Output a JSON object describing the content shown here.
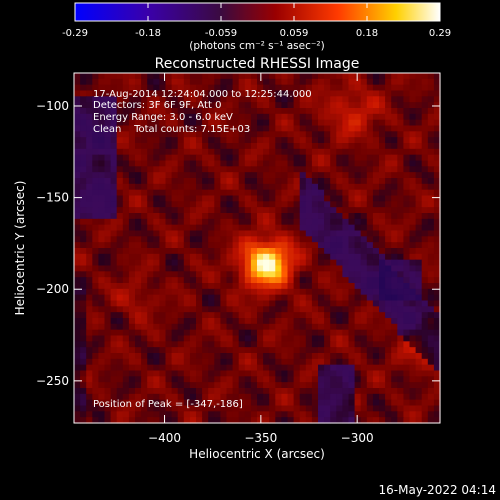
{
  "colorbar": {
    "ticks": [
      "-0.29",
      "-0.18",
      "-0.059",
      "0.059",
      "0.18",
      "0.29"
    ],
    "range": [
      -0.29,
      0.29
    ],
    "unit_label": "(photons cm⁻² s⁻¹ asec⁻²)"
  },
  "image": {
    "title": "Reconstructed RHESSI Image",
    "annotations": [
      "17-Aug-2014 12:24:04.000 to 12:25:44.000",
      "Detectors: 3F 6F 9F, Att 0",
      "Energy Range: 3.0 - 6.0 keV",
      "Clean    Total counts: 7.15E+03"
    ],
    "peak_label": "Position of Peak = [-347,-186]",
    "timestamp": "16-May-2022 04:14"
  },
  "chart_data": {
    "type": "heatmap",
    "title": "Reconstructed RHESSI Image",
    "xlabel": "Heliocentric X (arcsec)",
    "ylabel": "Heliocentric Y (arcsec)",
    "xlim": [
      -447,
      -257
    ],
    "ylim": [
      -273,
      -82
    ],
    "xticks": [
      -400,
      -350,
      -300
    ],
    "yticks": [
      -250,
      -200,
      -150,
      -100
    ],
    "colormap": "hot",
    "vmin": -0.29,
    "vmax": 0.29,
    "peak": {
      "x": -347,
      "y": -186,
      "value": 0.29
    }
  },
  "colors": {
    "background": "#000000",
    "foreground": "#ffffff"
  }
}
